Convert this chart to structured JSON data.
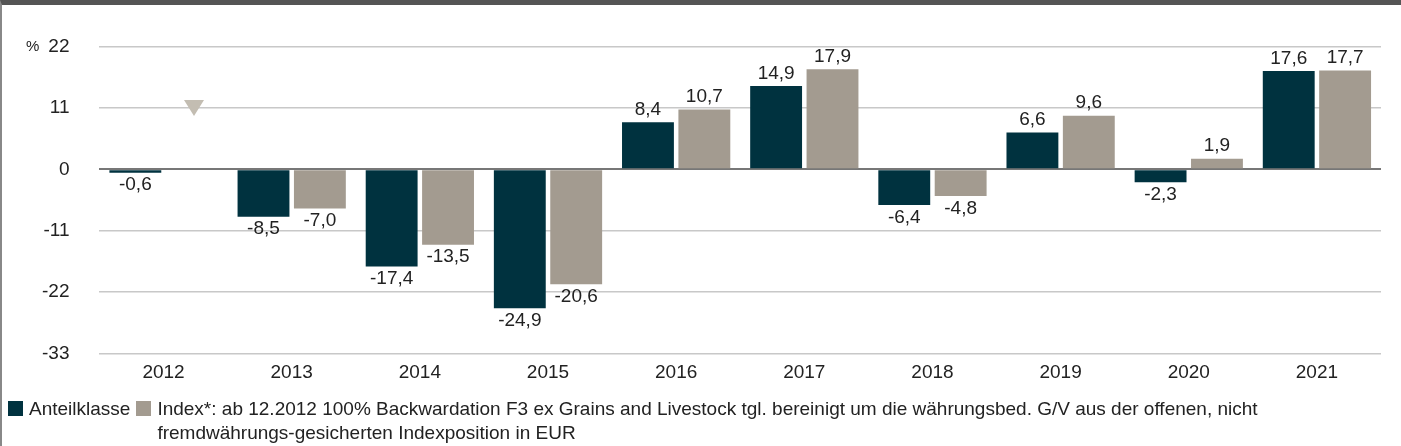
{
  "chart_data": {
    "type": "bar",
    "ylabel": "%",
    "categories": [
      "2012",
      "2013",
      "2014",
      "2015",
      "2016",
      "2017",
      "2018",
      "2019",
      "2020",
      "2021"
    ],
    "series": [
      {
        "name": "Anteilklasse",
        "color": "#00323f",
        "values": [
          -0.6,
          -8.5,
          -17.4,
          -24.9,
          8.4,
          14.9,
          -6.4,
          6.6,
          -2.3,
          17.6
        ],
        "value_labels": [
          "-0,6",
          "-8,5",
          "-17,4",
          "-24,9",
          "8,4",
          "14,9",
          "-6,4",
          "6,6",
          "-2,3",
          "17,6"
        ]
      },
      {
        "name": "Index*: ab 12.2012 100% Backwardation F3 ex Grains and Livestock tgl. bereinigt um die währungsbed. G/V aus der offenen, nicht fremdwährungs-gesicherten Indexposition in EUR",
        "color": "#a39b90",
        "values": [
          null,
          -7.0,
          -13.5,
          -20.6,
          10.7,
          17.9,
          -4.8,
          9.6,
          1.9,
          17.7
        ],
        "value_labels": [
          null,
          "-7,0",
          "-13,5",
          "-20,6",
          "10,7",
          "17,9",
          "-4,8",
          "9,6",
          "1,9",
          "17,7"
        ]
      }
    ],
    "ylim": [
      -33,
      22
    ],
    "yticks": [
      -33,
      -22,
      -11,
      0,
      11,
      22
    ],
    "grid": "y",
    "legend": "bottom"
  }
}
